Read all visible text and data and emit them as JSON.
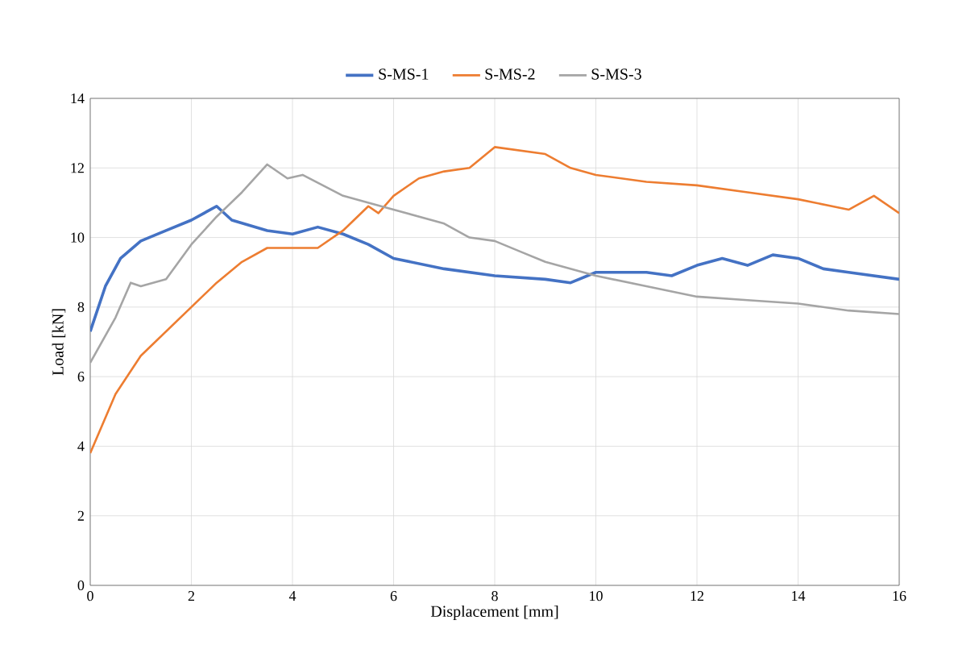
{
  "chart_data": {
    "type": "line",
    "xlabel": "Displacement [mm]",
    "ylabel": "Load [kN]",
    "xlim": [
      0,
      16
    ],
    "xticks": [
      0,
      2,
      4,
      6,
      8,
      10,
      12,
      14,
      16
    ],
    "ylim": [
      0,
      14
    ],
    "yticks": [
      0,
      2,
      4,
      6,
      8,
      10,
      12,
      14
    ],
    "grid": true,
    "legend": "top",
    "line_style": "solid",
    "marker": "none",
    "series": [
      {
        "name": "S-MS-1",
        "color": "#4472c4",
        "x": [
          0,
          0.3,
          0.6,
          1,
          1.5,
          2,
          2.5,
          2.8,
          3.5,
          4,
          4.5,
          5,
          5.5,
          6,
          7,
          8,
          9,
          9.5,
          10,
          11,
          11.5,
          12,
          12.5,
          13,
          13.5,
          14,
          14.5,
          15,
          16
        ],
        "values": [
          7.3,
          8.6,
          9.4,
          9.9,
          10.2,
          10.5,
          10.9,
          10.5,
          10.2,
          10.1,
          10.3,
          10.1,
          9.8,
          9.4,
          9.1,
          8.9,
          8.8,
          8.7,
          9.0,
          9.0,
          8.9,
          9.2,
          9.4,
          9.2,
          9.5,
          9.4,
          9.1,
          9.0,
          8.8
        ]
      },
      {
        "name": "S-MS-2",
        "color": "#ed7d31",
        "x": [
          0,
          0.5,
          1,
          1.5,
          2,
          2.5,
          3,
          3.5,
          4,
          4.5,
          5,
          5.5,
          5.7,
          6,
          6.5,
          7,
          7.5,
          8,
          8.5,
          9,
          9.5,
          10,
          11,
          12,
          13,
          14,
          15,
          15.5,
          16
        ],
        "values": [
          3.8,
          5.5,
          6.6,
          7.3,
          8.0,
          8.7,
          9.3,
          9.7,
          9.7,
          9.7,
          10.2,
          10.9,
          10.7,
          11.2,
          11.7,
          11.9,
          12.0,
          12.6,
          12.5,
          12.4,
          12.0,
          11.8,
          11.6,
          11.5,
          11.3,
          11.1,
          10.8,
          11.2,
          10.7
        ]
      },
      {
        "name": "S-MS-3",
        "color": "#a5a5a5",
        "x": [
          0,
          0.5,
          0.8,
          1,
          1.5,
          2,
          2.5,
          3,
          3.5,
          3.9,
          4.2,
          5,
          5.5,
          6,
          7,
          7.5,
          8,
          8.5,
          9,
          10,
          11,
          12,
          13,
          14,
          15,
          16
        ],
        "values": [
          6.4,
          7.7,
          8.7,
          8.6,
          8.8,
          9.8,
          10.6,
          11.3,
          12.1,
          11.7,
          11.8,
          11.2,
          11.0,
          10.8,
          10.4,
          10.0,
          9.9,
          9.6,
          9.3,
          8.9,
          8.6,
          8.3,
          8.2,
          8.1,
          7.9,
          7.8
        ]
      }
    ]
  }
}
